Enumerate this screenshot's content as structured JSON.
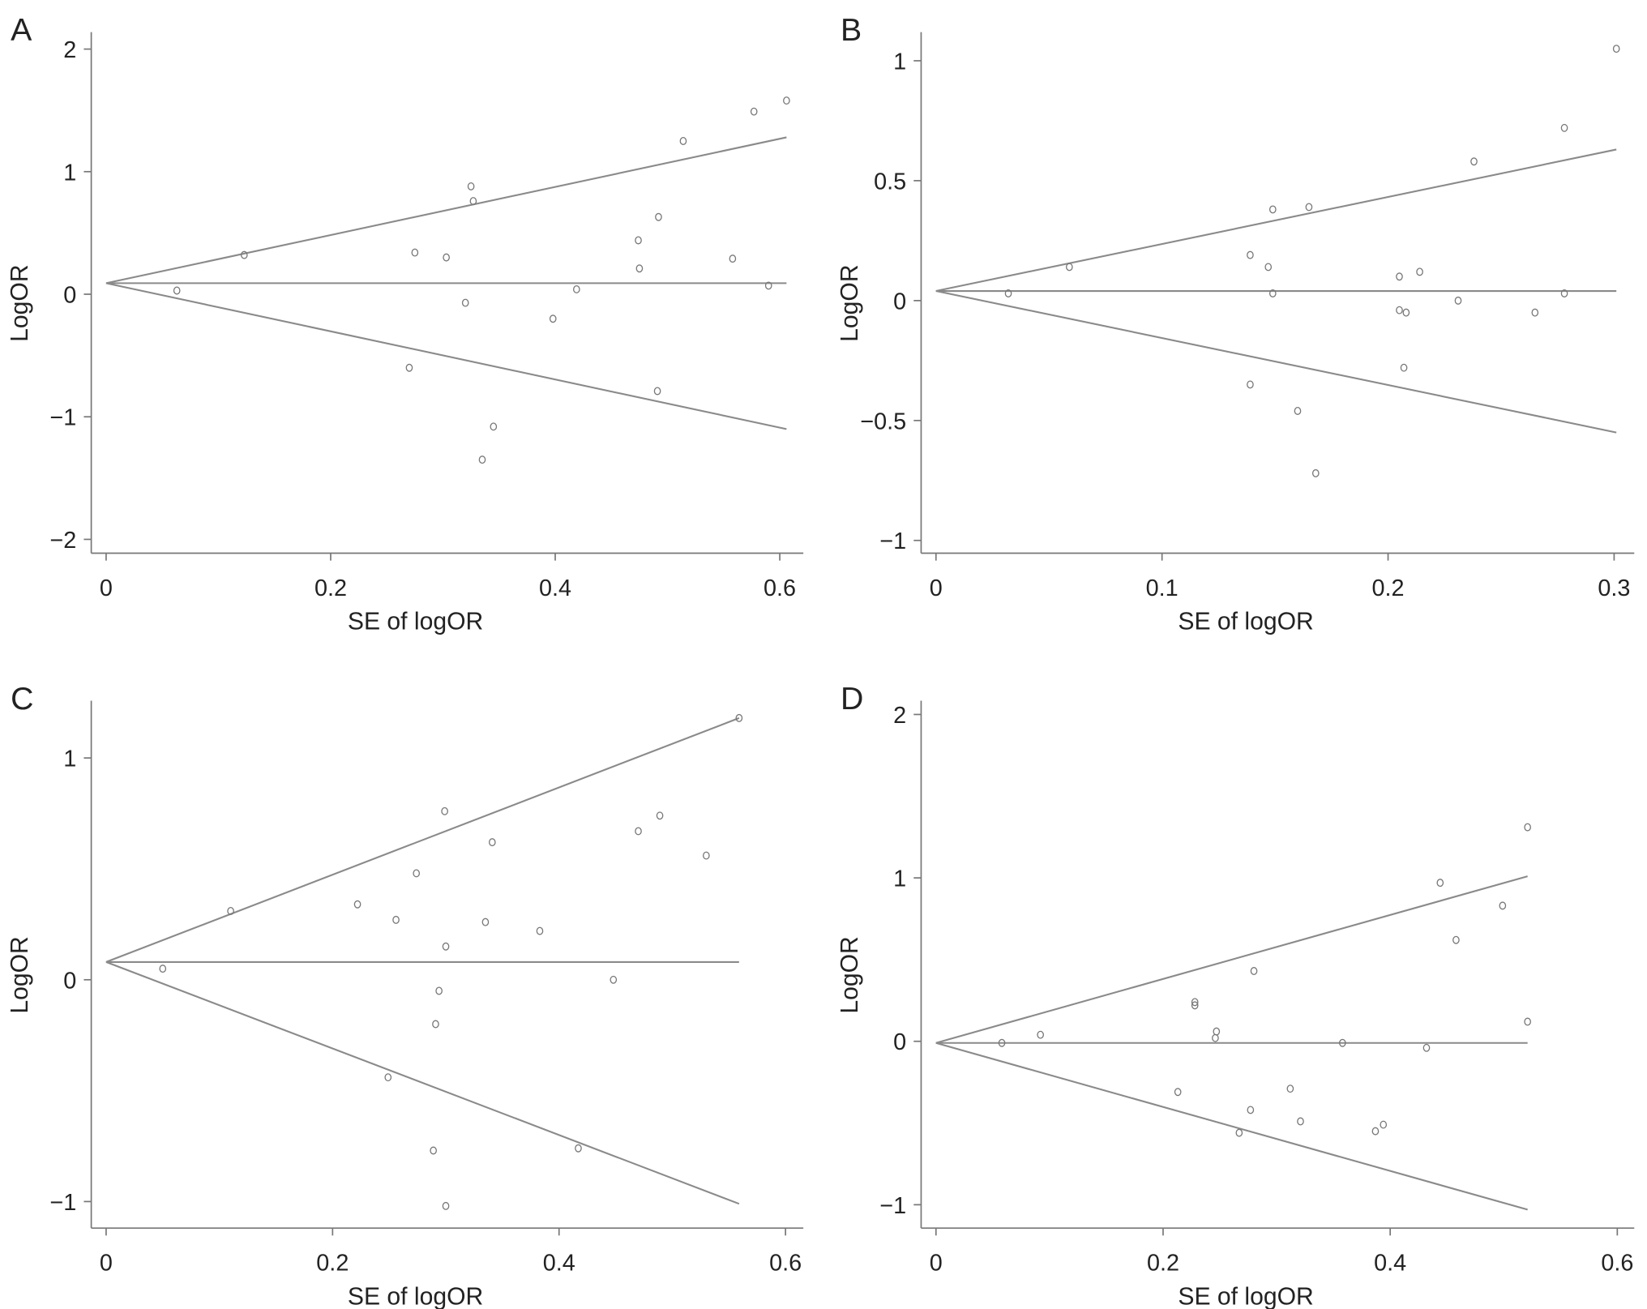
{
  "chart_data": [
    {
      "type": "scatter",
      "panel_label": "A",
      "title": "",
      "xlabel": "SE of logOR",
      "ylabel": "LogOR",
      "xlim": [
        0,
        0.61
      ],
      "ylim": [
        -2.2,
        2.2
      ],
      "xticks": [
        0,
        0.2,
        0.4,
        0.6
      ],
      "xtick_labels": [
        "0",
        "0.2",
        "0.4",
        "0.6"
      ],
      "yticks": [
        -2,
        -1,
        0,
        1,
        2
      ],
      "ytick_labels": [
        "−2",
        "−1",
        "0",
        "1",
        "2"
      ],
      "pooled_logOR": 0.09,
      "funnel_se_max": 0.606,
      "funnel_upper_end": 1.28,
      "funnel_lower_end": -1.1,
      "points": [
        [
          0.063,
          0.03
        ],
        [
          0.123,
          0.32
        ],
        [
          0.275,
          0.34
        ],
        [
          0.303,
          0.3
        ],
        [
          0.325,
          0.88
        ],
        [
          0.327,
          0.76
        ],
        [
          0.32,
          -0.07
        ],
        [
          0.27,
          -0.6
        ],
        [
          0.335,
          -1.35
        ],
        [
          0.345,
          -1.08
        ],
        [
          0.398,
          -0.2
        ],
        [
          0.419,
          0.04
        ],
        [
          0.474,
          0.44
        ],
        [
          0.475,
          0.21
        ],
        [
          0.492,
          0.63
        ],
        [
          0.491,
          -0.79
        ],
        [
          0.514,
          1.25
        ],
        [
          0.558,
          0.29
        ],
        [
          0.577,
          1.49
        ],
        [
          0.606,
          1.58
        ],
        [
          0.59,
          0.07
        ]
      ]
    },
    {
      "type": "scatter",
      "panel_label": "B",
      "title": "",
      "xlabel": "SE of logOR",
      "ylabel": "LogOR",
      "xlim": [
        0,
        0.31
      ],
      "ylim": [
        -1.1,
        1.1
      ],
      "xticks": [
        0,
        0.1,
        0.2,
        0.3
      ],
      "xtick_labels": [
        "0",
        "0.1",
        "0.2",
        "0.3"
      ],
      "yticks": [
        -1,
        -0.5,
        0,
        0.5,
        1
      ],
      "ytick_labels": [
        "−1",
        "−0.5",
        "0",
        "0.5",
        "1"
      ],
      "pooled_logOR": 0.04,
      "funnel_se_max": 0.301,
      "funnel_upper_end": 0.63,
      "funnel_lower_end": -0.55,
      "points": [
        [
          0.032,
          0.03
        ],
        [
          0.059,
          0.14
        ],
        [
          0.139,
          0.19
        ],
        [
          0.147,
          0.14
        ],
        [
          0.149,
          0.38
        ],
        [
          0.149,
          0.03
        ],
        [
          0.165,
          0.39
        ],
        [
          0.139,
          -0.35
        ],
        [
          0.16,
          -0.46
        ],
        [
          0.168,
          -0.72
        ],
        [
          0.205,
          0.1
        ],
        [
          0.214,
          0.12
        ],
        [
          0.205,
          -0.04
        ],
        [
          0.208,
          -0.05
        ],
        [
          0.207,
          -0.28
        ],
        [
          0.231,
          0.0
        ],
        [
          0.238,
          0.58
        ],
        [
          0.265,
          -0.05
        ],
        [
          0.278,
          0.72
        ],
        [
          0.278,
          0.03
        ],
        [
          0.301,
          1.05
        ]
      ]
    },
    {
      "type": "scatter",
      "panel_label": "C",
      "title": "",
      "xlabel": "SE of logOR",
      "ylabel": "LogOR",
      "xlim": [
        0,
        0.61
      ],
      "ylim": [
        -1.1,
        1.25
      ],
      "xticks": [
        0,
        0.2,
        0.4,
        0.6
      ],
      "xtick_labels": [
        "0",
        "0.2",
        "0.4",
        "0.6"
      ],
      "yticks": [
        -1,
        0,
        1
      ],
      "ytick_labels": [
        "−1",
        "0",
        "1"
      ],
      "pooled_logOR": 0.08,
      "funnel_se_max": 0.559,
      "funnel_upper_end": 1.18,
      "funnel_lower_end": -1.01,
      "points": [
        [
          0.05,
          0.05
        ],
        [
          0.11,
          0.31
        ],
        [
          0.222,
          0.34
        ],
        [
          0.256,
          0.27
        ],
        [
          0.274,
          0.48
        ],
        [
          0.299,
          0.76
        ],
        [
          0.3,
          0.15
        ],
        [
          0.294,
          -0.05
        ],
        [
          0.291,
          -0.2
        ],
        [
          0.249,
          -0.44
        ],
        [
          0.289,
          -0.77
        ],
        [
          0.3,
          -1.02
        ],
        [
          0.335,
          0.26
        ],
        [
          0.341,
          0.62
        ],
        [
          0.383,
          0.22
        ],
        [
          0.417,
          -0.76
        ],
        [
          0.448,
          0.0
        ],
        [
          0.47,
          0.67
        ],
        [
          0.489,
          0.74
        ],
        [
          0.53,
          0.56
        ],
        [
          0.559,
          1.18
        ]
      ]
    },
    {
      "type": "scatter",
      "panel_label": "D",
      "title": "",
      "xlabel": "SE of logOR",
      "ylabel": "LogOR",
      "xlim": [
        0,
        0.61
      ],
      "ylim": [
        -1.15,
        2.1
      ],
      "xticks": [
        0,
        0.2,
        0.4,
        0.6
      ],
      "xtick_labels": [
        "0",
        "0.2",
        "0.4",
        "0.6"
      ],
      "yticks": [
        -1,
        0,
        1,
        2
      ],
      "ytick_labels": [
        "−1",
        "0",
        "1",
        "2"
      ],
      "pooled_logOR": -0.01,
      "funnel_se_max": 0.521,
      "funnel_upper_end": 1.01,
      "funnel_lower_end": -1.03,
      "points": [
        [
          0.058,
          -0.01
        ],
        [
          0.092,
          0.04
        ],
        [
          0.213,
          -0.31
        ],
        [
          0.228,
          0.24
        ],
        [
          0.228,
          0.22
        ],
        [
          0.247,
          0.06
        ],
        [
          0.246,
          0.02
        ],
        [
          0.267,
          -0.56
        ],
        [
          0.277,
          -0.42
        ],
        [
          0.28,
          0.43
        ],
        [
          0.312,
          -0.29
        ],
        [
          0.321,
          -0.49
        ],
        [
          0.358,
          -0.01
        ],
        [
          0.387,
          -0.55
        ],
        [
          0.394,
          -0.51
        ],
        [
          0.432,
          -0.04
        ],
        [
          0.444,
          0.97
        ],
        [
          0.458,
          0.62
        ],
        [
          0.499,
          0.83
        ],
        [
          0.521,
          1.31
        ],
        [
          0.521,
          0.12
        ]
      ]
    }
  ]
}
